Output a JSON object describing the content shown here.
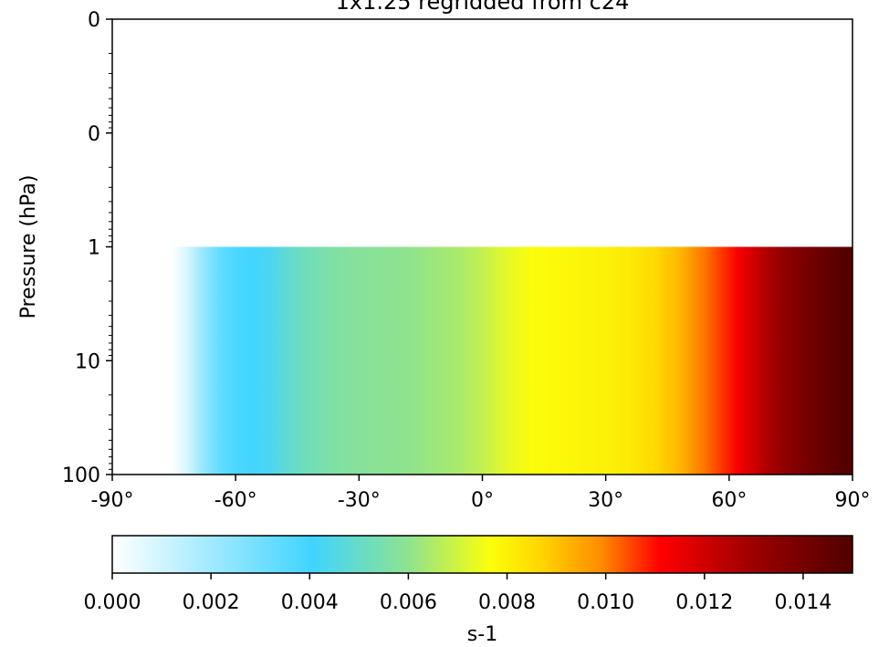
{
  "chart_data": {
    "type": "heatmap",
    "title": "1x1.25 regridded from c24",
    "xlabel": "",
    "ylabel": "Pressure (hPa)",
    "x_range": [
      -90,
      90
    ],
    "x_ticks": [
      -90,
      -60,
      -30,
      0,
      30,
      60,
      90
    ],
    "x_tick_labels": [
      "-90°",
      "-60°",
      "-30°",
      "0°",
      "30°",
      "60°",
      "90°"
    ],
    "y_scale": "log",
    "y_range": [
      100,
      0.01
    ],
    "y_ticks": [
      100,
      10,
      1,
      0.1,
      0.01
    ],
    "y_tick_labels": [
      "100",
      "10",
      "1",
      "0",
      "0"
    ],
    "data_top_pressure": 1,
    "data_start_latitude": -76,
    "latitude_values": [
      [
        -76,
        0.0
      ],
      [
        -72,
        0.0008
      ],
      [
        -68,
        0.0022
      ],
      [
        -64,
        0.0033
      ],
      [
        -60,
        0.0038
      ],
      [
        -56,
        0.004
      ],
      [
        -52,
        0.0043
      ],
      [
        -48,
        0.0048
      ],
      [
        -42,
        0.0053
      ],
      [
        -36,
        0.0056
      ],
      [
        -30,
        0.0058
      ],
      [
        -24,
        0.0059
      ],
      [
        -18,
        0.006
      ],
      [
        -12,
        0.0062
      ],
      [
        -6,
        0.0064
      ],
      [
        0,
        0.0068
      ],
      [
        6,
        0.0073
      ],
      [
        12,
        0.0077
      ],
      [
        18,
        0.0078
      ],
      [
        24,
        0.0079
      ],
      [
        30,
        0.008
      ],
      [
        36,
        0.0082
      ],
      [
        42,
        0.0086
      ],
      [
        48,
        0.0092
      ],
      [
        54,
        0.0101
      ],
      [
        58,
        0.0106
      ],
      [
        62,
        0.0112
      ],
      [
        66,
        0.012
      ],
      [
        70,
        0.0128
      ],
      [
        74,
        0.0134
      ],
      [
        80,
        0.0141
      ],
      [
        86,
        0.0147
      ],
      [
        90,
        0.015
      ]
    ],
    "colorbar": {
      "label": "s-1",
      "range": [
        0,
        0.015
      ],
      "ticks": [
        0.0,
        0.002,
        0.004,
        0.006,
        0.008,
        0.01,
        0.012,
        0.014
      ],
      "tick_labels": [
        "0.000",
        "0.002",
        "0.004",
        "0.006",
        "0.008",
        "0.010",
        "0.012",
        "0.014"
      ],
      "colormap": [
        [
          0.0,
          "#ffffff"
        ],
        [
          0.27,
          "#40d4ff"
        ],
        [
          0.4,
          "#8fe38e"
        ],
        [
          0.51,
          "#fbff0a"
        ],
        [
          0.58,
          "#ffd500"
        ],
        [
          0.66,
          "#ff8c00"
        ],
        [
          0.74,
          "#ff0000"
        ],
        [
          0.86,
          "#a00000"
        ],
        [
          1.0,
          "#4f0000"
        ]
      ]
    }
  }
}
